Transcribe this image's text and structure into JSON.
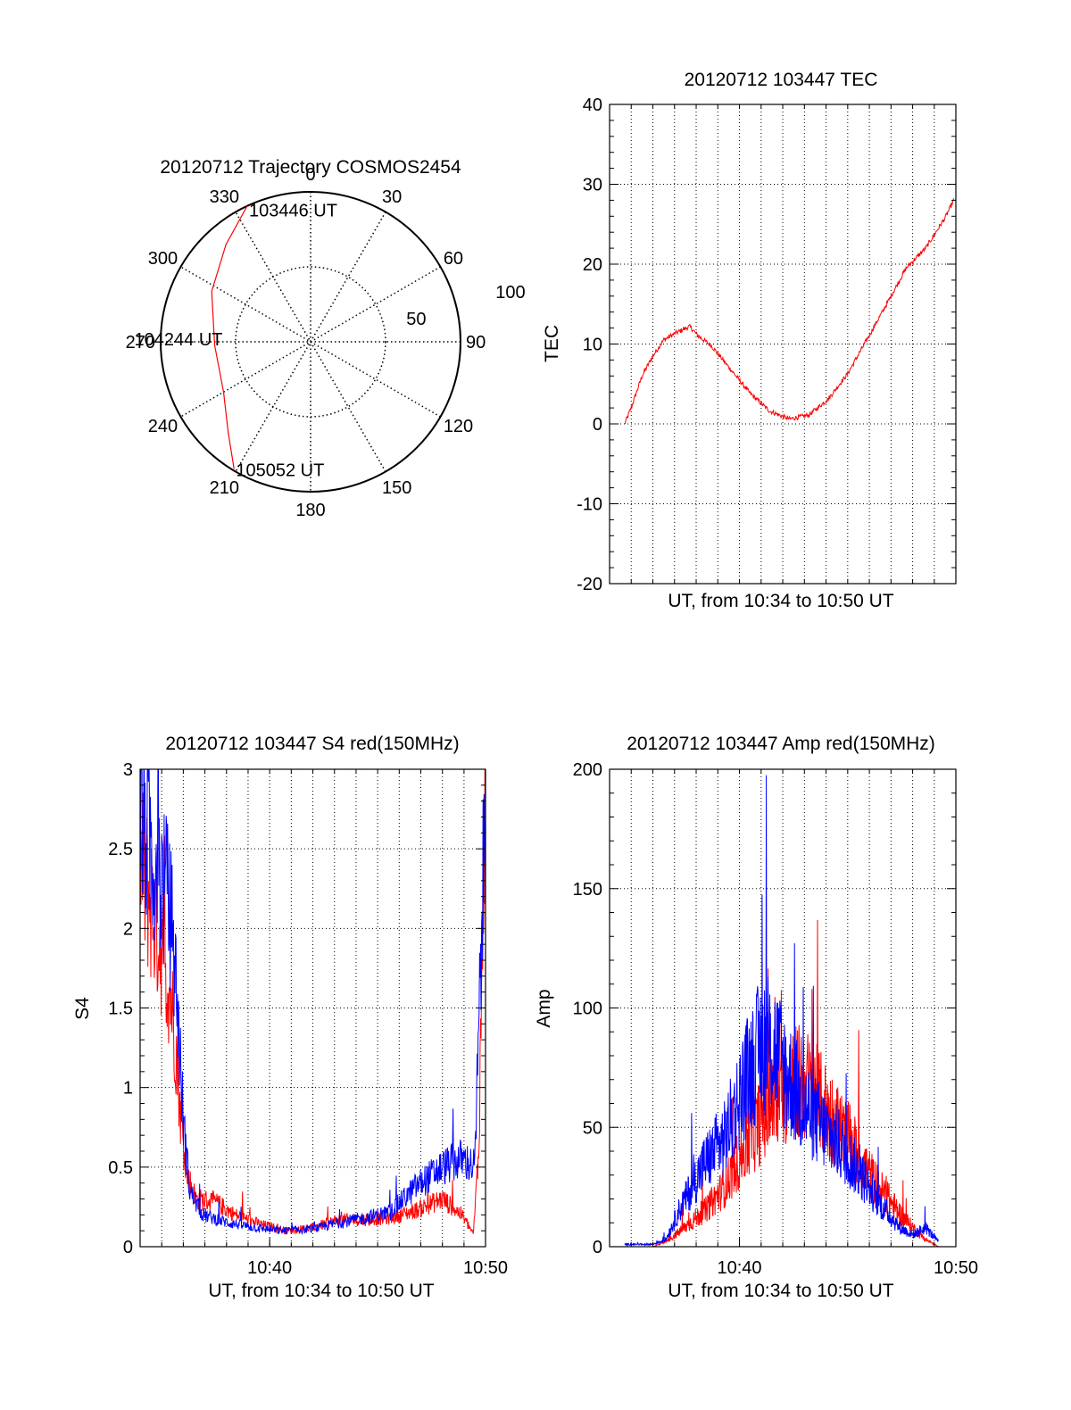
{
  "colors": {
    "red": "#ff0000",
    "blue": "#0000ff",
    "axis": "#000000",
    "grid": "#000000"
  },
  "chart_data": [
    {
      "id": "trajectory",
      "type": "polar",
      "title": "20120712 Trajectory COSMOS2454",
      "azimuth_labels": [
        "0",
        "30",
        "60",
        "90",
        "120",
        "150",
        "180",
        "210",
        "240",
        "270",
        "300",
        "330"
      ],
      "elevation_labels": [
        "50",
        "100"
      ],
      "grid": true,
      "series": [
        {
          "color": "red",
          "points": [
            {
              "az": 335,
              "r": 100
            },
            {
              "az": 319,
              "r": 86
            },
            {
              "az": 297,
              "r": 74
            },
            {
              "az": 268,
              "r": 64
            },
            {
              "az": 240,
              "r": 67
            },
            {
              "az": 222,
              "r": 82
            },
            {
              "az": 211,
              "r": 99
            }
          ]
        }
      ],
      "annotations": [
        {
          "text": "103446 UT",
          "az": 335,
          "r": 100
        },
        {
          "text": "104244 UT",
          "az": 268,
          "r": 64
        },
        {
          "text": "105052 UT",
          "az": 211,
          "r": 99
        }
      ]
    },
    {
      "id": "tec",
      "type": "line",
      "title": "20120712 103447 TEC",
      "xlabel": "UT, from 10:34 to 10:50 UT",
      "ylabel": "TEC",
      "xlim": [
        10.5667,
        10.8333
      ],
      "ylim": [
        -20,
        40
      ],
      "yticks": [
        "-20",
        "-10",
        "0",
        "10",
        "20",
        "30",
        "40"
      ],
      "xticks": [],
      "grid": true,
      "noise": 0.3,
      "series": [
        {
          "color": "red",
          "x": [
            10.5783,
            10.5833,
            10.5917,
            10.6,
            10.6083,
            10.6167,
            10.6283,
            10.635,
            10.645,
            10.66,
            10.675,
            10.69,
            10.705,
            10.72,
            10.735,
            10.75,
            10.765,
            10.78,
            10.795,
            10.81,
            10.825,
            10.8317
          ],
          "y": [
            0,
            2,
            6,
            8.5,
            10.5,
            11.3,
            12.2,
            11,
            9.8,
            6.8,
            3.8,
            1.6,
            0.6,
            1.1,
            3.1,
            6.3,
            10.6,
            15,
            19.5,
            22,
            25.8,
            28
          ]
        }
      ]
    },
    {
      "id": "s4",
      "type": "line",
      "title": "20120712 103447 S4 red(150MHz)",
      "xlabel": "UT, from 10:34 to 10:50 UT",
      "ylabel": "S4",
      "xlim": [
        10.5667,
        10.8333
      ],
      "ylim": [
        0,
        3
      ],
      "yticks": [
        "0",
        "0.5",
        "1",
        "1.5",
        "2",
        "2.5",
        "3"
      ],
      "xticks": [
        {
          "label": "10:40",
          "x": 10.6667
        },
        {
          "label": "10:50",
          "x": 10.8333
        }
      ],
      "grid": true,
      "noise": 0.12,
      "series": [
        {
          "color": "red",
          "x": [
            10.567,
            10.58,
            10.59,
            10.595,
            10.598,
            10.603,
            10.61,
            10.625,
            10.64,
            10.66,
            10.68,
            10.7,
            10.72,
            10.74,
            10.76,
            10.78,
            10.8,
            10.815,
            10.824,
            10.828,
            10.8333
          ],
          "y": [
            2.4,
            2.0,
            1.6,
            1.2,
            0.8,
            0.45,
            0.3,
            0.28,
            0.2,
            0.14,
            0.1,
            0.12,
            0.17,
            0.17,
            0.18,
            0.23,
            0.3,
            0.2,
            0.08,
            0.6,
            3.0
          ]
        },
        {
          "color": "blue",
          "x": [
            10.567,
            10.58,
            10.59,
            10.595,
            10.6,
            10.605,
            10.615,
            10.635,
            10.655,
            10.675,
            10.7,
            10.72,
            10.74,
            10.76,
            10.78,
            10.8,
            10.815,
            10.825,
            10.829,
            10.8333
          ],
          "y": [
            2.7,
            2.4,
            2.1,
            1.6,
            0.8,
            0.35,
            0.2,
            0.15,
            0.12,
            0.1,
            0.11,
            0.15,
            0.18,
            0.22,
            0.38,
            0.5,
            0.55,
            0.5,
            1.6,
            2.8
          ]
        }
      ]
    },
    {
      "id": "amp",
      "type": "line",
      "title": "20120712 103447 Amp red(150MHz)",
      "xlabel": "UT, from 10:34 to 10:50 UT",
      "ylabel": "Amp",
      "xlim": [
        10.5667,
        10.8333
      ],
      "ylim": [
        0,
        200
      ],
      "yticks": [
        "0",
        "50",
        "100",
        "150",
        "200"
      ],
      "xticks": [
        {
          "label": "10:40",
          "x": 10.6667
        },
        {
          "label": "10:50",
          "x": 10.8333
        }
      ],
      "grid": true,
      "noise": 12,
      "series": [
        {
          "color": "red",
          "x": [
            10.5783,
            10.6,
            10.61,
            10.62,
            10.64,
            10.655,
            10.67,
            10.685,
            10.7,
            10.715,
            10.73,
            10.75,
            10.77,
            10.79,
            10.8,
            10.81,
            10.82
          ],
          "y": [
            0,
            0,
            2,
            6,
            15,
            25,
            40,
            55,
            65,
            70,
            60,
            45,
            28,
            14,
            8,
            3,
            0
          ]
        },
        {
          "color": "blue",
          "x": [
            10.5783,
            10.6,
            10.61,
            10.62,
            10.64,
            10.655,
            10.665,
            10.675,
            10.685,
            10.695,
            10.705,
            10.715,
            10.73,
            10.745,
            10.76,
            10.775,
            10.79,
            10.8,
            10.81,
            10.82
          ],
          "y": [
            1,
            1,
            3,
            15,
            35,
            45,
            60,
            75,
            85,
            82,
            70,
            60,
            50,
            42,
            30,
            18,
            8,
            5,
            8,
            2
          ]
        }
      ]
    }
  ]
}
